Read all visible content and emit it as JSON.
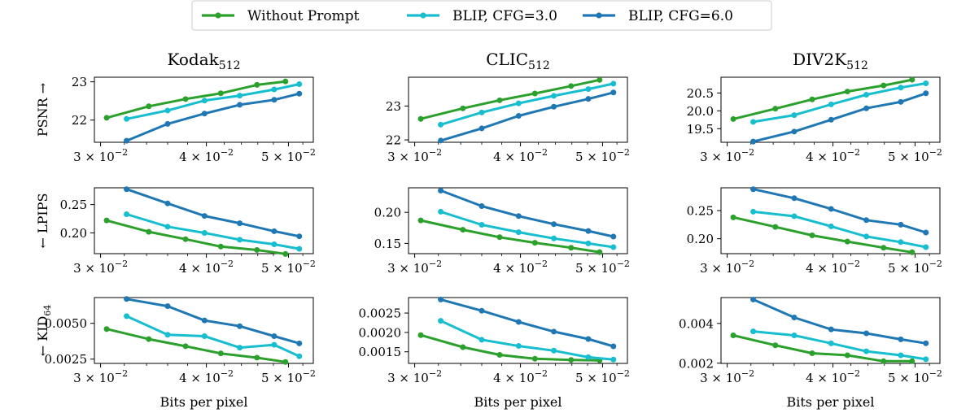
{
  "legend": [
    {
      "name": "Without Prompt",
      "color": "#2ca02c"
    },
    {
      "name": "BLIP, CFG=3.0",
      "color": "#17becf"
    },
    {
      "name": "BLIP, CFG=6.0",
      "color": "#1f77b4"
    }
  ],
  "columns": [
    {
      "dataset": "Kodak",
      "sub": "512"
    },
    {
      "dataset": "CLIC",
      "sub": "512"
    },
    {
      "dataset": "DIV2K",
      "sub": "512"
    }
  ],
  "rows": [
    {
      "label": "PSNR",
      "arrow": "→",
      "arrow_first": false
    },
    {
      "label": "LPIPS",
      "arrow": "←",
      "arrow_first": true
    },
    {
      "label": "KID",
      "sub": "64",
      "arrow": "←",
      "arrow_first": true
    }
  ],
  "xlabel": "Bits per pixel",
  "x_ticks": [
    {
      "value": 0.03,
      "base": "3 × 10",
      "exp": "−2"
    },
    {
      "value": 0.04,
      "base": "4 × 10",
      "exp": "−2"
    },
    {
      "value": 0.05,
      "base": "5 × 10",
      "exp": "−2"
    }
  ],
  "chart_data": [
    {
      "type": "line",
      "dataset": "Kodak512",
      "metric": "PSNR",
      "x_scale": "log",
      "xlim": [
        0.0295,
        0.0535
      ],
      "ylim": [
        21.42,
        23.12
      ],
      "y_ticks": [
        {
          "value": 22,
          "label": "22"
        },
        {
          "value": 23,
          "label": "23"
        }
      ],
      "series": [
        {
          "name": "Without Prompt",
          "x": [
            0.0305,
            0.0342,
            0.0378,
            0.0416,
            0.0459,
            0.0496
          ],
          "y": [
            22.06,
            22.36,
            22.55,
            22.7,
            22.92,
            23.01
          ]
        },
        {
          "name": "BLIP, CFG=3.0",
          "x": [
            0.0322,
            0.036,
            0.0398,
            0.0438,
            0.0481,
            0.0515
          ],
          "y": [
            22.03,
            22.25,
            22.51,
            22.64,
            22.8,
            22.94
          ]
        },
        {
          "name": "BLIP, CFG=6.0",
          "x": [
            0.0322,
            0.036,
            0.0398,
            0.0438,
            0.0481,
            0.0515
          ],
          "y": [
            21.46,
            21.9,
            22.17,
            22.4,
            22.53,
            22.69
          ]
        }
      ]
    },
    {
      "type": "line",
      "dataset": "CLIC512",
      "metric": "PSNR",
      "x_scale": "log",
      "xlim": [
        0.0295,
        0.0535
      ],
      "ylim": [
        21.93,
        23.85
      ],
      "y_ticks": [
        {
          "value": 22,
          "label": "22"
        },
        {
          "value": 23,
          "label": "23"
        }
      ],
      "series": [
        {
          "name": "Without Prompt",
          "x": [
            0.0305,
            0.0342,
            0.0378,
            0.0416,
            0.0459,
            0.0496
          ],
          "y": [
            22.62,
            22.93,
            23.17,
            23.37,
            23.59,
            23.77
          ]
        },
        {
          "name": "BLIP, CFG=3.0",
          "x": [
            0.0322,
            0.036,
            0.0398,
            0.0438,
            0.0481,
            0.0515
          ],
          "y": [
            22.45,
            22.81,
            23.08,
            23.3,
            23.5,
            23.66
          ]
        },
        {
          "name": "BLIP, CFG=6.0",
          "x": [
            0.0322,
            0.036,
            0.0398,
            0.0438,
            0.0481,
            0.0515
          ],
          "y": [
            21.98,
            22.34,
            22.71,
            22.98,
            23.21,
            23.4
          ]
        }
      ]
    },
    {
      "type": "line",
      "dataset": "DIV2K512",
      "metric": "PSNR",
      "x_scale": "log",
      "xlim": [
        0.0295,
        0.0535
      ],
      "ylim": [
        19.12,
        20.94
      ],
      "y_ticks": [
        {
          "value": 19.5,
          "label": "19.5"
        },
        {
          "value": 20.0,
          "label": "20.0"
        },
        {
          "value": 20.5,
          "label": "20.5"
        }
      ],
      "series": [
        {
          "name": "Without Prompt",
          "x": [
            0.0305,
            0.0342,
            0.0378,
            0.0416,
            0.0459,
            0.0496
          ],
          "y": [
            19.77,
            20.06,
            20.32,
            20.54,
            20.71,
            20.87
          ]
        },
        {
          "name": "BLIP, CFG=3.0",
          "x": [
            0.0322,
            0.036,
            0.0398,
            0.0438,
            0.0481,
            0.0515
          ],
          "y": [
            19.69,
            19.88,
            20.18,
            20.45,
            20.65,
            20.77
          ]
        },
        {
          "name": "BLIP, CFG=6.0",
          "x": [
            0.0322,
            0.036,
            0.0398,
            0.0438,
            0.0481,
            0.0515
          ],
          "y": [
            19.14,
            19.42,
            19.75,
            20.07,
            20.25,
            20.49
          ]
        }
      ]
    },
    {
      "type": "line",
      "dataset": "Kodak512",
      "metric": "LPIPS",
      "x_scale": "log",
      "xlim": [
        0.0295,
        0.0535
      ],
      "ylim": [
        0.1635,
        0.2795
      ],
      "y_ticks": [
        {
          "value": 0.2,
          "label": "0.20"
        },
        {
          "value": 0.25,
          "label": "0.25"
        }
      ],
      "series": [
        {
          "name": "Without Prompt",
          "x": [
            0.0305,
            0.0342,
            0.0378,
            0.0416,
            0.0459,
            0.0496
          ],
          "y": [
            0.222,
            0.202,
            0.189,
            0.176,
            0.17,
            0.163
          ]
        },
        {
          "name": "BLIP, CFG=3.0",
          "x": [
            0.0322,
            0.036,
            0.0398,
            0.0438,
            0.0481,
            0.0515
          ],
          "y": [
            0.233,
            0.211,
            0.2,
            0.188,
            0.18,
            0.172
          ]
        },
        {
          "name": "BLIP, CFG=6.0",
          "x": [
            0.0322,
            0.036,
            0.0398,
            0.0438,
            0.0481,
            0.0515
          ],
          "y": [
            0.277,
            0.252,
            0.23,
            0.217,
            0.203,
            0.194
          ]
        }
      ]
    },
    {
      "type": "line",
      "dataset": "CLIC512",
      "metric": "LPIPS",
      "x_scale": "log",
      "xlim": [
        0.0295,
        0.0535
      ],
      "ylim": [
        0.1335,
        0.2395
      ],
      "y_ticks": [
        {
          "value": 0.15,
          "label": "0.15"
        },
        {
          "value": 0.2,
          "label": "0.20"
        }
      ],
      "series": [
        {
          "name": "Without Prompt",
          "x": [
            0.0305,
            0.0342,
            0.0378,
            0.0416,
            0.0459,
            0.0496
          ],
          "y": [
            0.187,
            0.172,
            0.16,
            0.151,
            0.143,
            0.136
          ]
        },
        {
          "name": "BLIP, CFG=3.0",
          "x": [
            0.0322,
            0.036,
            0.0398,
            0.0438,
            0.0481,
            0.0515
          ],
          "y": [
            0.201,
            0.18,
            0.168,
            0.158,
            0.15,
            0.144
          ]
        },
        {
          "name": "BLIP, CFG=6.0",
          "x": [
            0.0322,
            0.036,
            0.0398,
            0.0438,
            0.0481,
            0.0515
          ],
          "y": [
            0.235,
            0.21,
            0.194,
            0.181,
            0.17,
            0.161
          ]
        }
      ]
    },
    {
      "type": "line",
      "dataset": "DIV2K512",
      "metric": "LPIPS",
      "x_scale": "log",
      "xlim": [
        0.0295,
        0.0535
      ],
      "ylim": [
        0.1735,
        0.2905
      ],
      "y_ticks": [
        {
          "value": 0.2,
          "label": "0.20"
        },
        {
          "value": 0.25,
          "label": "0.25"
        }
      ],
      "series": [
        {
          "name": "Without Prompt",
          "x": [
            0.0305,
            0.0342,
            0.0378,
            0.0416,
            0.0459,
            0.0496
          ],
          "y": [
            0.238,
            0.221,
            0.206,
            0.195,
            0.184,
            0.176
          ]
        },
        {
          "name": "BLIP, CFG=3.0",
          "x": [
            0.0322,
            0.036,
            0.0398,
            0.0438,
            0.0481,
            0.0515
          ],
          "y": [
            0.248,
            0.24,
            0.222,
            0.204,
            0.194,
            0.185
          ]
        },
        {
          "name": "BLIP, CFG=6.0",
          "x": [
            0.0322,
            0.036,
            0.0398,
            0.0438,
            0.0481,
            0.0515
          ],
          "y": [
            0.288,
            0.272,
            0.253,
            0.233,
            0.225,
            0.211
          ]
        }
      ]
    },
    {
      "type": "line",
      "dataset": "Kodak512",
      "metric": "KID64",
      "x_scale": "log",
      "xlim": [
        0.0295,
        0.0535
      ],
      "ylim": [
        0.0022,
        0.0068
      ],
      "y_ticks": [
        {
          "value": 0.0025,
          "label": "0.0025"
        },
        {
          "value": 0.005,
          "label": "0.0050"
        }
      ],
      "series": [
        {
          "name": "Without Prompt",
          "x": [
            0.0305,
            0.0342,
            0.0378,
            0.0416,
            0.0459,
            0.0496
          ],
          "y": [
            0.0046,
            0.0039,
            0.0034,
            0.0029,
            0.0026,
            0.0023
          ]
        },
        {
          "name": "BLIP, CFG=3.0",
          "x": [
            0.0322,
            0.036,
            0.0398,
            0.0438,
            0.0481,
            0.0515
          ],
          "y": [
            0.0055,
            0.0042,
            0.0041,
            0.0033,
            0.0035,
            0.0027
          ]
        },
        {
          "name": "BLIP, CFG=6.0",
          "x": [
            0.0322,
            0.036,
            0.0398,
            0.0438,
            0.0481,
            0.0515
          ],
          "y": [
            0.0067,
            0.0062,
            0.0052,
            0.0048,
            0.0041,
            0.0036
          ]
        }
      ]
    },
    {
      "type": "line",
      "dataset": "CLIC512",
      "metric": "KID64",
      "x_scale": "log",
      "xlim": [
        0.0295,
        0.0535
      ],
      "ylim": [
        0.0012,
        0.0029
      ],
      "y_ticks": [
        {
          "value": 0.0015,
          "label": "0.0015"
        },
        {
          "value": 0.002,
          "label": "0.0020"
        },
        {
          "value": 0.0025,
          "label": "0.0025"
        }
      ],
      "series": [
        {
          "name": "Without Prompt",
          "x": [
            0.0305,
            0.0342,
            0.0378,
            0.0416,
            0.0459,
            0.0496
          ],
          "y": [
            0.00193,
            0.00162,
            0.00142,
            0.00132,
            0.00129,
            0.00128
          ]
        },
        {
          "name": "BLIP, CFG=3.0",
          "x": [
            0.0322,
            0.036,
            0.0398,
            0.0438,
            0.0481,
            0.0515
          ],
          "y": [
            0.0023,
            0.00181,
            0.00165,
            0.00153,
            0.00136,
            0.0013
          ]
        },
        {
          "name": "BLIP, CFG=6.0",
          "x": [
            0.0322,
            0.036,
            0.0398,
            0.0438,
            0.0481,
            0.0515
          ],
          "y": [
            0.00285,
            0.00256,
            0.00227,
            0.00202,
            0.00183,
            0.00164
          ]
        }
      ]
    },
    {
      "type": "line",
      "dataset": "DIV2K512",
      "metric": "KID64",
      "x_scale": "log",
      "xlim": [
        0.0295,
        0.0535
      ],
      "ylim": [
        0.00199,
        0.0053
      ],
      "y_ticks": [
        {
          "value": 0.002,
          "label": "0.002"
        },
        {
          "value": 0.004,
          "label": "0.004"
        }
      ],
      "series": [
        {
          "name": "Without Prompt",
          "x": [
            0.0305,
            0.0342,
            0.0378,
            0.0416,
            0.0459,
            0.0496
          ],
          "y": [
            0.0034,
            0.0029,
            0.0025,
            0.0024,
            0.0021,
            0.0021
          ]
        },
        {
          "name": "BLIP, CFG=3.0",
          "x": [
            0.0322,
            0.036,
            0.0398,
            0.0438,
            0.0481,
            0.0515
          ],
          "y": [
            0.0036,
            0.0034,
            0.003,
            0.0026,
            0.0024,
            0.0022
          ]
        },
        {
          "name": "BLIP, CFG=6.0",
          "x": [
            0.0322,
            0.036,
            0.0398,
            0.0438,
            0.0481,
            0.0515
          ],
          "y": [
            0.0052,
            0.0043,
            0.0037,
            0.0035,
            0.0032,
            0.003
          ]
        }
      ]
    }
  ]
}
